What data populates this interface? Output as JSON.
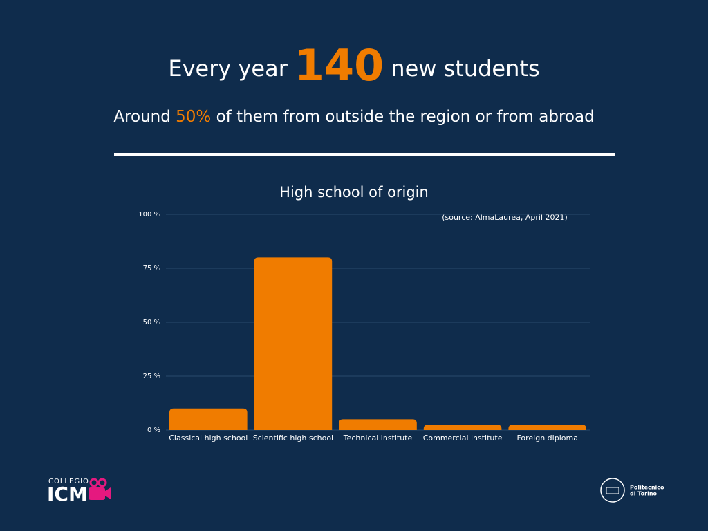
{
  "header": {
    "pre": "Every year",
    "number": "140",
    "post": "new students",
    "sub_pre": "Around",
    "sub_number": "50%",
    "sub_post": "of them from outside the region or from abroad"
  },
  "chart_data": {
    "type": "bar",
    "title": "High school of origin",
    "source": "(source: AlmaLaurea, April 2021)",
    "categories": [
      "Classical high school",
      "Scientific high school",
      "Technical institute",
      "Commercial institute",
      "Foreign diploma"
    ],
    "values": [
      10,
      80,
      5,
      2.5,
      2.5
    ],
    "color": "#f07c00",
    "ylim": [
      0,
      100
    ],
    "yticks": [
      {
        "value": 0,
        "label": "0 %"
      },
      {
        "value": 25,
        "label": "25 %"
      },
      {
        "value": 50,
        "label": "50 %"
      },
      {
        "value": 75,
        "label": "75 %"
      },
      {
        "value": 100,
        "label": "100 %"
      }
    ],
    "grid": true
  },
  "logos": {
    "left_top": "COLLEGIO",
    "left_main": "ICM",
    "right_line1": "Politecnico",
    "right_line2": "di Torino"
  }
}
